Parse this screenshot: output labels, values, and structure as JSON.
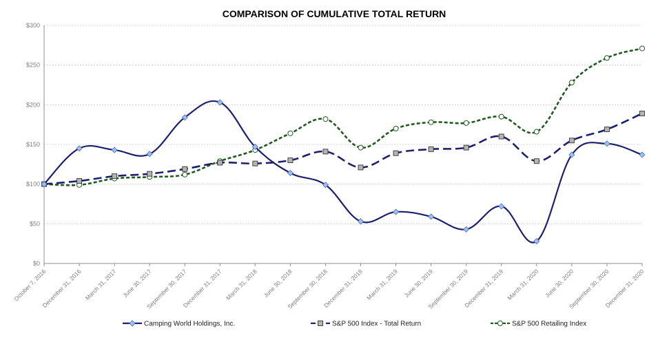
{
  "chart_data": {
    "type": "line",
    "title": "COMPARISON OF CUMULATIVE TOTAL RETURN",
    "xlabel": "",
    "ylabel": "",
    "ylim": [
      0,
      300
    ],
    "yticks": [
      0,
      50,
      100,
      150,
      200,
      250,
      300
    ],
    "ytick_labels": [
      "$0",
      "$50",
      "$100",
      "$150",
      "$200",
      "$250",
      "$300"
    ],
    "grid": true,
    "legend_position": "bottom",
    "categories": [
      "October 7, 2016",
      "December 31, 2016",
      "March 31, 2017",
      "June 30, 2017",
      "September 30, 2017",
      "December 31, 2017",
      "March 31, 2018",
      "June 30, 2018",
      "September 30, 2018",
      "December 31, 2018",
      "March 31, 2019",
      "June 30, 2019",
      "September 30, 2019",
      "December 31, 2019",
      "March 31, 2020",
      "June 30, 2020",
      "September 30, 2020",
      "December 31, 2020"
    ],
    "series": [
      {
        "name": "Camping World Holdings, Inc.",
        "color": "#1b1f6e",
        "marker": "diamond",
        "marker_fill": "#9fbff0",
        "dash": "solid",
        "values": [
          100,
          145,
          143,
          138,
          184,
          203,
          147,
          114,
          99,
          53,
          65,
          59,
          43,
          72,
          28,
          137,
          151,
          137
        ]
      },
      {
        "name": "S&P 500 Index - Total Return",
        "color": "#1b1f6e",
        "marker": "square",
        "marker_fill": "#b4b4b4",
        "dash": "long-dash",
        "values": [
          100,
          104,
          110,
          113,
          119,
          127,
          126,
          130,
          141,
          121,
          139,
          144,
          146,
          160,
          129,
          155,
          169,
          189
        ]
      },
      {
        "name": "S&P 500 Retailing Index",
        "color": "#1e5a1e",
        "marker": "circle",
        "marker_fill": "#ffffff",
        "dash": "short-dash",
        "values": [
          100,
          99,
          107,
          109,
          112,
          129,
          143,
          164,
          182,
          146,
          170,
          178,
          177,
          185,
          166,
          228,
          259,
          271
        ]
      }
    ]
  }
}
